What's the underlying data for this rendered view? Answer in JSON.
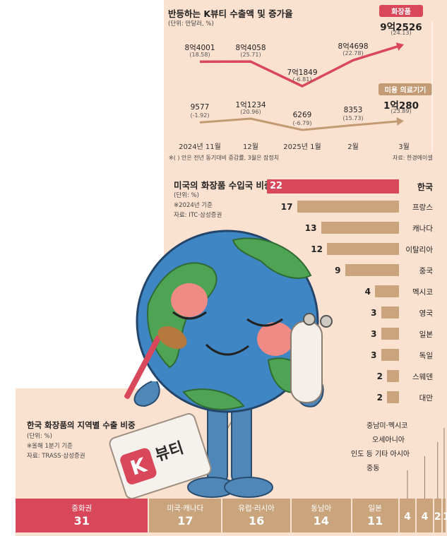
{
  "chart_data": [
    {
      "type": "line",
      "title": "반등하는 K뷰티 수출액 및 증가율",
      "unit": "(단위: 만달러, %)",
      "x": [
        "2024년 11월",
        "12월",
        "2025년 1월",
        "2월",
        "3월"
      ],
      "series": [
        {
          "name": "화장품",
          "color": "#d9475a",
          "values": [
            84001,
            84058,
            71849,
            84698,
            92526
          ],
          "labels": [
            "8억4001",
            "8억4058",
            "7억1849",
            "8억4698",
            "9억2526"
          ],
          "growth": [
            "(18.58)",
            "(25.71)",
            "(-6.81)",
            "(22.78)",
            "(24.13)"
          ]
        },
        {
          "name": "미용 의료기기",
          "color": "#c29a74",
          "values": [
            9577,
            11234,
            6269,
            8353,
            10280
          ],
          "labels": [
            "9577",
            "1억1234",
            "6269",
            "8353",
            "1억280"
          ],
          "growth": [
            "(-1.92)",
            "(20.96)",
            "(-6.79)",
            "(15.73)",
            "(23.89)"
          ]
        }
      ],
      "note": "※( ) 안은 전년 동기대비 증감률, 3월은 잠정치",
      "source": "자료: 한경에이셀"
    },
    {
      "type": "bar",
      "title": "미국의 화장품 수입국 비중",
      "unit": "(단위: %)",
      "note": "※2024년 기준",
      "source": "자료: ITC·삼성증권",
      "categories": [
        "한국",
        "프랑스",
        "캐나다",
        "이탈리아",
        "중국",
        "멕시코",
        "영국",
        "일본",
        "독일",
        "스웨덴",
        "대만"
      ],
      "values": [
        22,
        17,
        13,
        12,
        9,
        4,
        3,
        3,
        3,
        2,
        2
      ],
      "highlight_color": "#d9475a",
      "bar_color": "#c9a47c"
    },
    {
      "type": "bar",
      "orientation": "stacked-horizontal",
      "title": "한국 화장품의 지역별 수출 비중",
      "unit": "(단위: %)",
      "note": "※올해 1분기 기준",
      "source": "자료: TRASS·삼성증권",
      "categories": [
        "중화권",
        "미국·캐나다",
        "유럽·러시아",
        "동남아",
        "일본",
        "중동",
        "인도 등 기타 아시아",
        "오세아니아",
        "중남미·멕시코"
      ],
      "values": [
        31,
        17,
        16,
        14,
        11,
        4,
        4,
        2,
        1
      ],
      "colors": [
        "#d9475a",
        "#c9a47c",
        "#c9a47c",
        "#c9a47c",
        "#c9a47c",
        "#c9a47c",
        "#c9a47c",
        "#c9a47c",
        "#c9a47c"
      ]
    }
  ],
  "illustration": {
    "tag_text": "뷰티",
    "tag_badge": "K",
    "tag_badge_color": "#d9475a"
  }
}
